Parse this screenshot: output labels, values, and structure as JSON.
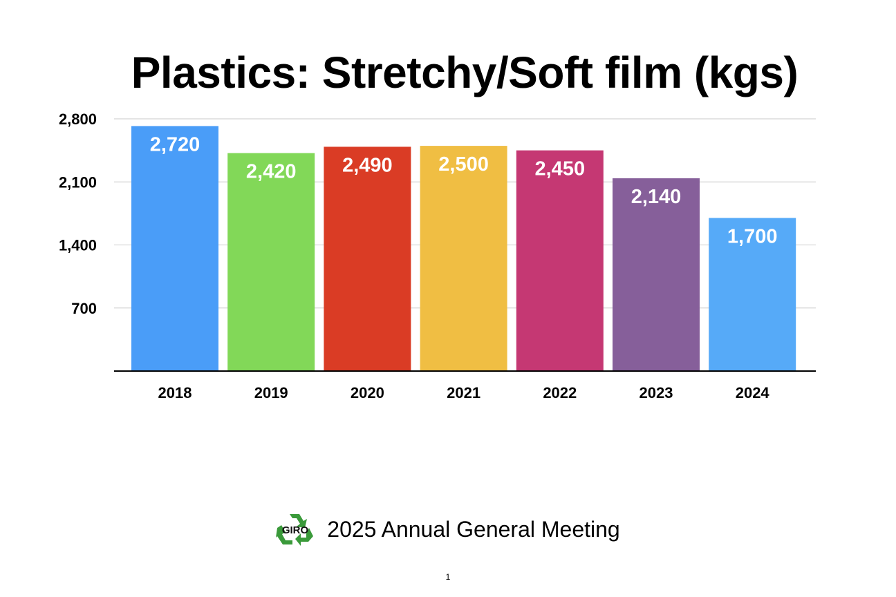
{
  "slide": {
    "footer_text": "2025 Annual General Meeting",
    "logo_text": "GIRO",
    "page_number": "1"
  },
  "chart_data": {
    "type": "bar",
    "title": "Plastics: Stretchy/Soft film (kgs)",
    "categories": [
      "2018",
      "2019",
      "2020",
      "2021",
      "2022",
      "2023",
      "2024"
    ],
    "values": [
      2720,
      2420,
      2490,
      2500,
      2450,
      2140,
      1700
    ],
    "value_labels": [
      "2,720",
      "2,420",
      "2,490",
      "2,500",
      "2,450",
      "2,140",
      "1,700"
    ],
    "colors": [
      "#4a9df8",
      "#82d858",
      "#da3c25",
      "#f0be43",
      "#c53873",
      "#865f9a",
      "#56aaf8"
    ],
    "ylim": [
      0,
      2800
    ],
    "yticks": [
      700,
      1400,
      2100,
      2800
    ],
    "ytick_labels": [
      "700",
      "1,400",
      "2,100",
      "2,800"
    ],
    "grid": true,
    "legend": "none",
    "xlabel": "",
    "ylabel": ""
  }
}
